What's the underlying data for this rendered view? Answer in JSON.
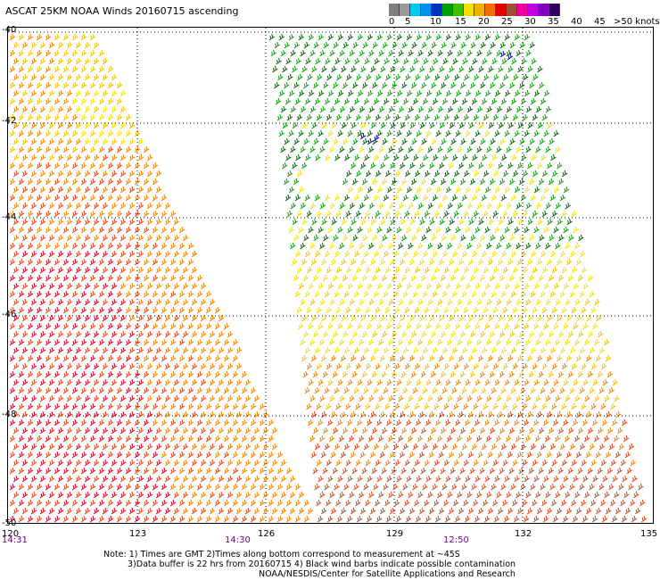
{
  "title": "ASCAT 25KM NOAA Winds 20160715 ascending",
  "legend": {
    "ticks": [
      "0",
      "5",
      "10",
      "15",
      "20",
      "25",
      "30",
      "35",
      "40",
      "45",
      ">50 knots"
    ],
    "colors": [
      "#7f7f7f",
      "#9a9a9a",
      "#00c8f0",
      "#0090f0",
      "#0030c0",
      "#00a000",
      "#40c000",
      "#f0e000",
      "#f0b000",
      "#f07000",
      "#e00000",
      "#a05030",
      "#f000a0",
      "#c000e0",
      "#8000c0",
      "#300060"
    ]
  },
  "map": {
    "lat_labels": [
      "-40",
      "-42",
      "-44",
      "-46",
      "-48",
      "-50"
    ],
    "lon_labels": [
      "120",
      "123",
      "126",
      "129",
      "132",
      "135"
    ],
    "time_labels": [
      "14:31",
      "14:30",
      "12:50"
    ],
    "barb_colors": {
      "green_dark": "#006000",
      "green": "#00a000",
      "yellow": "#f0e000",
      "gold": "#f0c000",
      "orange": "#f08000",
      "red_orange": "#e04010",
      "red": "#d00020",
      "brown": "#a05030",
      "blue": "#0000c0"
    }
  },
  "notes": {
    "line1": "Note: 1) Times are GMT 2)Times along bottom correspond to measurement at ~45S",
    "line2": "3)Data buffer is 22 hrs from 20160715 4) Black wind barbs indicate possible contamination",
    "line3": "NOAA/NESDIS/Center for Satellite Applications and Research"
  }
}
